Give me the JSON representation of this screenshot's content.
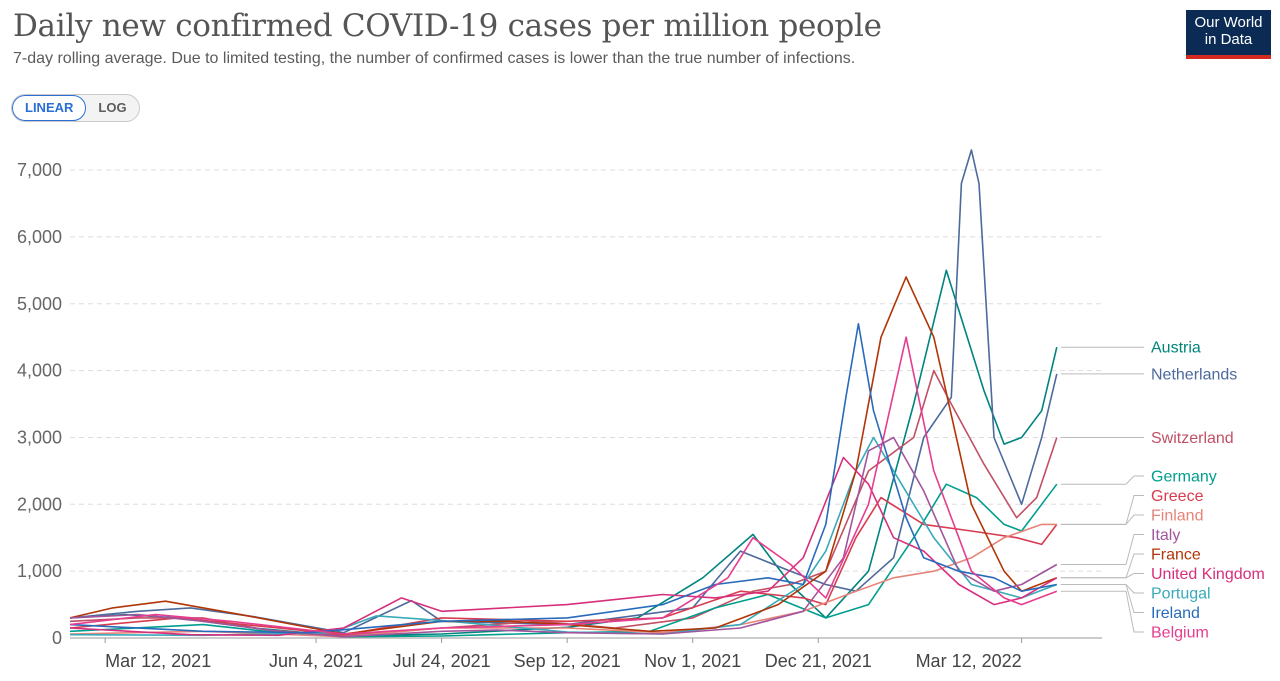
{
  "header": {
    "title": "Daily new confirmed COVID-19 cases per million people",
    "subtitle": "7-day rolling average. Due to limited testing, the number of confirmed cases is lower than the true number of infections.",
    "logo_line1": "Our World",
    "logo_line2": "in Data"
  },
  "scale_toggle": {
    "linear_label": "LINEAR",
    "log_label": "LOG",
    "selected": "LINEAR"
  },
  "chart_data": {
    "type": "line",
    "title": "Daily new confirmed COVID-19 cases per million people",
    "subtitle": "7-day rolling average. Due to limited testing, the number of confirmed cases is lower than the true number of infections.",
    "x_axis": {
      "type": "date",
      "range": [
        "2021-02-26",
        "2022-04-13"
      ],
      "ticks": [
        {
          "date": "2021-03-12",
          "label": "Mar 12, 2021"
        },
        {
          "date": "2021-06-04",
          "label": "Jun 4, 2021"
        },
        {
          "date": "2021-07-24",
          "label": "Jul 24, 2021"
        },
        {
          "date": "2021-09-12",
          "label": "Sep 12, 2021"
        },
        {
          "date": "2021-11-01",
          "label": "Nov 1, 2021"
        },
        {
          "date": "2021-12-21",
          "label": "Dec 21, 2021"
        },
        {
          "date": "2022-03-12",
          "label": "Mar 12, 2022"
        }
      ]
    },
    "y_axis": {
      "range": [
        0,
        7300
      ],
      "ticks": [
        {
          "value": 0,
          "label": "0"
        },
        {
          "value": 1000,
          "label": "1,000"
        },
        {
          "value": 2000,
          "label": "2,000"
        },
        {
          "value": 3000,
          "label": "3,000"
        },
        {
          "value": 4000,
          "label": "4,000"
        },
        {
          "value": 5000,
          "label": "5,000"
        },
        {
          "value": 6000,
          "label": "6,000"
        },
        {
          "value": 7000,
          "label": "7,000"
        }
      ]
    },
    "grid": "horizontal dashed",
    "legend": "labels at right end of lines",
    "series": [
      {
        "name": "Austria",
        "color": "#00847e",
        "points": [
          [
            "2021-02-26",
            300
          ],
          [
            "2021-03-20",
            350
          ],
          [
            "2021-04-10",
            300
          ],
          [
            "2021-05-10",
            150
          ],
          [
            "2021-06-15",
            30
          ],
          [
            "2021-07-24",
            60
          ],
          [
            "2021-09-12",
            160
          ],
          [
            "2021-10-10",
            300
          ],
          [
            "2021-11-05",
            900
          ],
          [
            "2021-11-25",
            1550
          ],
          [
            "2021-12-10",
            800
          ],
          [
            "2021-12-24",
            300
          ],
          [
            "2022-01-10",
            1000
          ],
          [
            "2022-01-28",
            3500
          ],
          [
            "2022-02-10",
            5500
          ],
          [
            "2022-02-25",
            3700
          ],
          [
            "2022-03-05",
            2900
          ],
          [
            "2022-03-12",
            3000
          ],
          [
            "2022-03-20",
            3400
          ],
          [
            "2022-03-26",
            4350
          ]
        ]
      },
      {
        "name": "Netherlands",
        "color": "#4c6a9c",
        "points": [
          [
            "2021-02-26",
            300
          ],
          [
            "2021-03-25",
            400
          ],
          [
            "2021-04-15",
            450
          ],
          [
            "2021-05-10",
            320
          ],
          [
            "2021-06-15",
            80
          ],
          [
            "2021-07-12",
            560
          ],
          [
            "2021-07-24",
            250
          ],
          [
            "2021-09-12",
            200
          ],
          [
            "2021-11-01",
            450
          ],
          [
            "2021-11-20",
            1300
          ],
          [
            "2021-12-10",
            1000
          ],
          [
            "2021-12-24",
            800
          ],
          [
            "2022-01-05",
            700
          ],
          [
            "2022-01-20",
            1200
          ],
          [
            "2022-02-01",
            3000
          ],
          [
            "2022-02-12",
            3600
          ],
          [
            "2022-02-16",
            6800
          ],
          [
            "2022-02-20",
            7300
          ],
          [
            "2022-02-23",
            6800
          ],
          [
            "2022-03-01",
            3000
          ],
          [
            "2022-03-12",
            2000
          ],
          [
            "2022-03-20",
            3000
          ],
          [
            "2022-03-26",
            3950
          ]
        ]
      },
      {
        "name": "Switzerland",
        "color": "#c15065",
        "points": [
          [
            "2021-02-26",
            250
          ],
          [
            "2021-03-25",
            300
          ],
          [
            "2021-04-20",
            300
          ],
          [
            "2021-05-15",
            120
          ],
          [
            "2021-06-15",
            40
          ],
          [
            "2021-07-24",
            150
          ],
          [
            "2021-09-01",
            250
          ],
          [
            "2021-10-01",
            150
          ],
          [
            "2021-11-01",
            300
          ],
          [
            "2021-11-25",
            700
          ],
          [
            "2021-12-10",
            800
          ],
          [
            "2021-12-24",
            1000
          ],
          [
            "2022-01-10",
            2500
          ],
          [
            "2022-01-28",
            3000
          ],
          [
            "2022-02-05",
            4000
          ],
          [
            "2022-02-12",
            3500
          ],
          [
            "2022-02-25",
            2600
          ],
          [
            "2022-03-10",
            1800
          ],
          [
            "2022-03-18",
            2100
          ],
          [
            "2022-03-26",
            3000
          ]
        ]
      },
      {
        "name": "Germany",
        "color": "#009e8e",
        "points": [
          [
            "2021-02-26",
            100
          ],
          [
            "2021-04-20",
            200
          ],
          [
            "2021-05-15",
            100
          ],
          [
            "2021-06-15",
            20
          ],
          [
            "2021-07-24",
            30
          ],
          [
            "2021-09-12",
            80
          ],
          [
            "2021-10-15",
            100
          ],
          [
            "2021-11-10",
            450
          ],
          [
            "2021-12-01",
            650
          ],
          [
            "2021-12-24",
            300
          ],
          [
            "2022-01-10",
            500
          ],
          [
            "2022-01-28",
            1500
          ],
          [
            "2022-02-10",
            2300
          ],
          [
            "2022-02-22",
            2100
          ],
          [
            "2022-03-05",
            1700
          ],
          [
            "2022-03-12",
            1600
          ],
          [
            "2022-03-20",
            2000
          ],
          [
            "2022-03-26",
            2300
          ]
        ]
      },
      {
        "name": "Greece",
        "color": "#d73c50",
        "points": [
          [
            "2021-02-26",
            150
          ],
          [
            "2021-04-10",
            300
          ],
          [
            "2021-05-20",
            150
          ],
          [
            "2021-06-15",
            50
          ],
          [
            "2021-07-24",
            300
          ],
          [
            "2021-09-12",
            250
          ],
          [
            "2021-10-20",
            300
          ],
          [
            "2021-11-20",
            700
          ],
          [
            "2021-12-15",
            600
          ],
          [
            "2021-12-24",
            500
          ],
          [
            "2022-01-05",
            1500
          ],
          [
            "2022-01-15",
            2100
          ],
          [
            "2022-02-01",
            1700
          ],
          [
            "2022-02-20",
            1600
          ],
          [
            "2022-03-10",
            1500
          ],
          [
            "2022-03-20",
            1400
          ],
          [
            "2022-03-26",
            1700
          ]
        ]
      },
      {
        "name": "Finland",
        "color": "#e6847a",
        "points": [
          [
            "2021-02-26",
            60
          ],
          [
            "2021-04-20",
            100
          ],
          [
            "2021-06-15",
            20
          ],
          [
            "2021-07-24",
            150
          ],
          [
            "2021-09-12",
            150
          ],
          [
            "2021-10-20",
            80
          ],
          [
            "2021-11-20",
            200
          ],
          [
            "2021-12-15",
            400
          ],
          [
            "2022-01-05",
            700
          ],
          [
            "2022-01-20",
            900
          ],
          [
            "2022-02-05",
            1000
          ],
          [
            "2022-02-20",
            1200
          ],
          [
            "2022-03-05",
            1500
          ],
          [
            "2022-03-20",
            1700
          ],
          [
            "2022-03-26",
            1700
          ]
        ]
      },
      {
        "name": "Portugal",
        "color": "#38aaba",
        "points": [
          [
            "2021-02-26",
            50
          ],
          [
            "2021-04-20",
            40
          ],
          [
            "2021-06-10",
            80
          ],
          [
            "2021-06-28",
            330
          ],
          [
            "2021-07-24",
            260
          ],
          [
            "2021-09-12",
            90
          ],
          [
            "2021-10-20",
            60
          ],
          [
            "2021-11-20",
            200
          ],
          [
            "2021-12-15",
            800
          ],
          [
            "2021-12-24",
            1300
          ],
          [
            "2022-01-05",
            2500
          ],
          [
            "2022-01-12",
            3000
          ],
          [
            "2022-01-20",
            2500
          ],
          [
            "2022-02-05",
            1500
          ],
          [
            "2022-02-20",
            800
          ],
          [
            "2022-03-12",
            600
          ],
          [
            "2022-03-26",
            800
          ]
        ]
      },
      {
        "name": "France",
        "color": "#b13507",
        "points": [
          [
            "2021-02-26",
            300
          ],
          [
            "2021-03-15",
            450
          ],
          [
            "2021-04-05",
            550
          ],
          [
            "2021-05-05",
            350
          ],
          [
            "2021-06-15",
            60
          ],
          [
            "2021-07-24",
            250
          ],
          [
            "2021-08-20",
            250
          ],
          [
            "2021-09-12",
            200
          ],
          [
            "2021-10-15",
            100
          ],
          [
            "2021-11-10",
            150
          ],
          [
            "2021-12-05",
            500
          ],
          [
            "2021-12-24",
            1000
          ],
          [
            "2022-01-05",
            2500
          ],
          [
            "2022-01-15",
            4500
          ],
          [
            "2022-01-25",
            5400
          ],
          [
            "2022-02-05",
            4500
          ],
          [
            "2022-02-20",
            2000
          ],
          [
            "2022-03-05",
            1000
          ],
          [
            "2022-03-12",
            700
          ],
          [
            "2022-03-26",
            900
          ]
        ]
      },
      {
        "name": "United Kingdom",
        "color": "#d82f7c",
        "points": [
          [
            "2021-02-26",
            150
          ],
          [
            "2021-04-15",
            50
          ],
          [
            "2021-05-20",
            40
          ],
          [
            "2021-06-15",
            150
          ],
          [
            "2021-07-08",
            600
          ],
          [
            "2021-07-24",
            400
          ],
          [
            "2021-09-12",
            500
          ],
          [
            "2021-10-20",
            650
          ],
          [
            "2021-11-10",
            600
          ],
          [
            "2021-12-01",
            700
          ],
          [
            "2021-12-15",
            1200
          ],
          [
            "2021-12-31",
            2700
          ],
          [
            "2022-01-10",
            2300
          ],
          [
            "2022-01-20",
            1500
          ],
          [
            "2022-02-01",
            1300
          ],
          [
            "2022-02-15",
            800
          ],
          [
            "2022-03-01",
            500
          ],
          [
            "2022-03-12",
            600
          ],
          [
            "2022-03-26",
            900
          ]
        ]
      },
      {
        "name": "Italy",
        "color": "#a2559c",
        "points": [
          [
            "2021-02-26",
            300
          ],
          [
            "2021-03-25",
            350
          ],
          [
            "2021-04-20",
            250
          ],
          [
            "2021-05-20",
            100
          ],
          [
            "2021-06-15",
            20
          ],
          [
            "2021-07-24",
            100
          ],
          [
            "2021-08-15",
            120
          ],
          [
            "2021-09-12",
            80
          ],
          [
            "2021-10-20",
            60
          ],
          [
            "2021-11-20",
            150
          ],
          [
            "2021-12-15",
            400
          ],
          [
            "2021-12-31",
            1200
          ],
          [
            "2022-01-10",
            2800
          ],
          [
            "2022-01-20",
            3000
          ],
          [
            "2022-02-01",
            2200
          ],
          [
            "2022-02-15",
            1000
          ],
          [
            "2022-03-01",
            700
          ],
          [
            "2022-03-12",
            800
          ],
          [
            "2022-03-26",
            1100
          ]
        ]
      },
      {
        "name": "Ireland",
        "color": "#286bbb",
        "points": [
          [
            "2021-02-26",
            200
          ],
          [
            "2021-04-20",
            100
          ],
          [
            "2021-06-01",
            80
          ],
          [
            "2021-07-24",
            250
          ],
          [
            "2021-09-12",
            300
          ],
          [
            "2021-10-20",
            500
          ],
          [
            "2021-11-10",
            800
          ],
          [
            "2021-12-01",
            900
          ],
          [
            "2021-12-15",
            800
          ],
          [
            "2021-12-24",
            1700
          ],
          [
            "2022-01-01",
            3600
          ],
          [
            "2022-01-06",
            4700
          ],
          [
            "2022-01-12",
            3400
          ],
          [
            "2022-01-25",
            1800
          ],
          [
            "2022-02-01",
            1200
          ],
          [
            "2022-02-15",
            1000
          ],
          [
            "2022-03-01",
            900
          ],
          [
            "2022-03-12",
            700
          ],
          [
            "2022-03-26",
            800
          ]
        ]
      },
      {
        "name": "Belgium",
        "color": "#e63d8f",
        "points": [
          [
            "2021-02-26",
            200
          ],
          [
            "2021-04-01",
            350
          ],
          [
            "2021-05-01",
            250
          ],
          [
            "2021-06-15",
            60
          ],
          [
            "2021-07-24",
            150
          ],
          [
            "2021-09-12",
            200
          ],
          [
            "2021-10-20",
            300
          ],
          [
            "2021-11-15",
            900
          ],
          [
            "2021-11-25",
            1500
          ],
          [
            "2021-12-10",
            1100
          ],
          [
            "2021-12-24",
            600
          ],
          [
            "2022-01-10",
            2000
          ],
          [
            "2022-01-25",
            4500
          ],
          [
            "2022-02-05",
            2500
          ],
          [
            "2022-02-20",
            1000
          ],
          [
            "2022-03-05",
            600
          ],
          [
            "2022-03-12",
            500
          ],
          [
            "2022-03-26",
            700
          ]
        ]
      }
    ]
  }
}
